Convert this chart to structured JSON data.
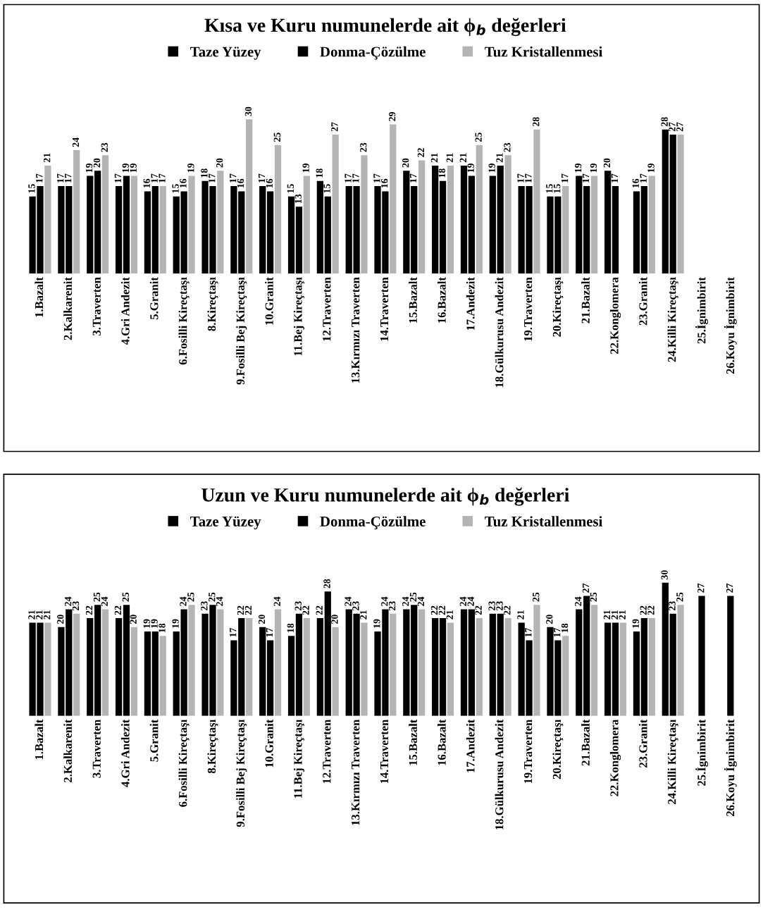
{
  "chart_data": [
    {
      "type": "bar",
      "title": "Kısa ve Kuru numunelerde ait ϕ$_{b}$ değerleri",
      "legend": "top",
      "data_labels": true,
      "categories": [
        "1.Bazalt",
        "2.Kalkarenit",
        "3.Traverten",
        "4.Gri Andezit",
        "5.Granit",
        "6.Fosilli Kireçtaşı",
        "8.Kireçtaşı",
        "9.Fosilli Bej Kireçtaşı",
        "10.Granit",
        "11.Bej Kireçtaşı",
        "12.Traverten",
        "13.Kırmızı Traverten",
        "14.Traverten",
        "15.Bazalt",
        "16.Bazalt",
        "17.Andezit",
        "18.Gülkurusu Andezit",
        "19.Traverten",
        "20.Kireçtaşı",
        "21.Bazalt",
        "22.Konglomera",
        "23.Granit",
        "24.Killi Kireçtaşı",
        "25.İgnimbirit",
        "26.Koyu İgnimbirit"
      ],
      "series": [
        {
          "name": "Taze Yüzey",
          "color": "#000000",
          "values": [
            15,
            17,
            19,
            17,
            16,
            15,
            18,
            17,
            17,
            15,
            18,
            17,
            17,
            20,
            21,
            21,
            19,
            17,
            15,
            19,
            20,
            16,
            28,
            null,
            null
          ]
        },
        {
          "name": "Donma-Çözülme",
          "color": "#000000",
          "values": [
            17,
            17,
            20,
            19,
            17,
            16,
            17,
            16,
            16,
            13,
            15,
            17,
            16,
            17,
            18,
            19,
            21,
            17,
            15,
            17,
            17,
            17,
            27,
            null,
            null
          ]
        },
        {
          "name": "Tuz Kristallenmesi",
          "color": "#b4b4b4",
          "values": [
            21,
            24,
            23,
            19,
            17,
            19,
            20,
            30,
            25,
            19,
            27,
            23,
            29,
            22,
            21,
            25,
            23,
            28,
            17,
            19,
            null,
            19,
            27,
            null,
            null
          ]
        }
      ]
    },
    {
      "type": "bar",
      "title": "Uzun ve Kuru numunelerde ait ϕ$_{b}$ değerleri",
      "legend": "top",
      "data_labels": true,
      "categories": [
        "1.Bazalt",
        "2.Kalkarenit",
        "3.Traverten",
        "4.Gri Andezit",
        "5.Granit",
        "6.Fosilli Kireçtaşı",
        "8.Kireçtaşı",
        "9.Fosilli Bej Kireçtaşı",
        "10.Granit",
        "11.Bej Kireçtaşı",
        "12.Traverten",
        "13.Kırmızı Traverten",
        "14.Traverten",
        "15.Bazalt",
        "16.Bazalt",
        "17.Andezit",
        "18.Gülkurusu Andezit",
        "19.Traverten",
        "20.Kireçtaşı",
        "21.Bazalt",
        "22.Konglomera",
        "23.Granit",
        "24.Killi Kireçtaşı",
        "25.İgnimbirit",
        "26.Koyu İgnimbirit"
      ],
      "series": [
        {
          "name": "Taze Yüzey",
          "color": "#000000",
          "values": [
            21,
            20,
            22,
            22,
            19,
            19,
            23,
            17,
            20,
            18,
            22,
            24,
            19,
            24,
            22,
            24,
            23,
            21,
            20,
            24,
            21,
            19,
            30,
            null,
            null
          ]
        },
        {
          "name": "Donma-Çözülme",
          "color": "#000000",
          "values": [
            21,
            24,
            25,
            25,
            19,
            24,
            25,
            22,
            17,
            23,
            28,
            23,
            24,
            25,
            22,
            24,
            23,
            17,
            17,
            27,
            21,
            22,
            23,
            27,
            27
          ]
        },
        {
          "name": "Tuz Kristallenmesi",
          "color": "#b4b4b4",
          "values": [
            21,
            23,
            24,
            20,
            18,
            25,
            24,
            22,
            24,
            22,
            20,
            21,
            23,
            24,
            21,
            22,
            22,
            25,
            18,
            25,
            21,
            22,
            25,
            null,
            null
          ]
        }
      ]
    }
  ]
}
